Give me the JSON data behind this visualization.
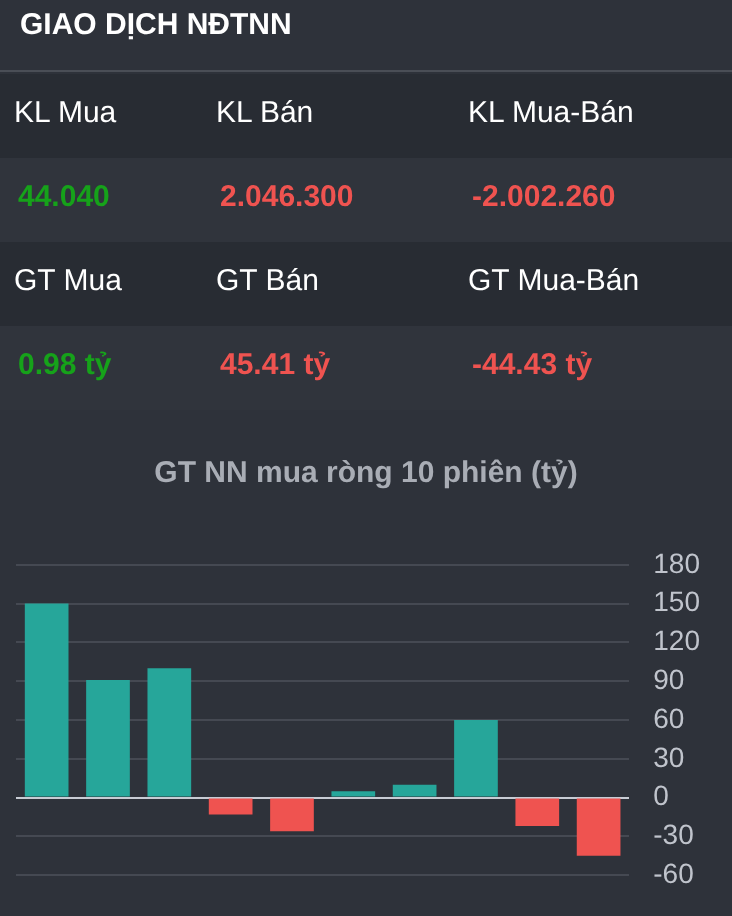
{
  "chart_data": [
    {
      "type": "other",
      "title": "GIAO DỊCH NĐTNN",
      "annotations": [
        "KL Mua",
        "KL Bán",
        "KL Mua-Bán",
        "44.040",
        "2.046.300",
        "-2.002.260",
        "GT Mua",
        "GT Bán",
        "GT Mua-Bán",
        "0.98 tỷ",
        "45.41 tỷ",
        "-44.43 tỷ"
      ]
    },
    {
      "type": "bar",
      "title": "GT NN mua ròng 10 phiên (tỷ)",
      "categories": [
        null,
        null,
        null,
        null,
        null,
        null,
        null,
        null,
        null,
        null
      ],
      "values": [
        150,
        91,
        100,
        -13,
        -26,
        5,
        10,
        60,
        -22,
        -45
      ],
      "colors": [
        "#26a69a",
        "#26a69a",
        "#26a69a",
        "#ef5350",
        "#ef5350",
        "#26a69a",
        "#26a69a",
        "#26a69a",
        "#ef5350",
        "#ef5350"
      ],
      "ylim": [
        -60,
        180
      ],
      "yticks": [
        -60,
        -30,
        0,
        30,
        60,
        90,
        120,
        150,
        180
      ],
      "grid": "y",
      "tick_labels": "y"
    }
  ]
}
